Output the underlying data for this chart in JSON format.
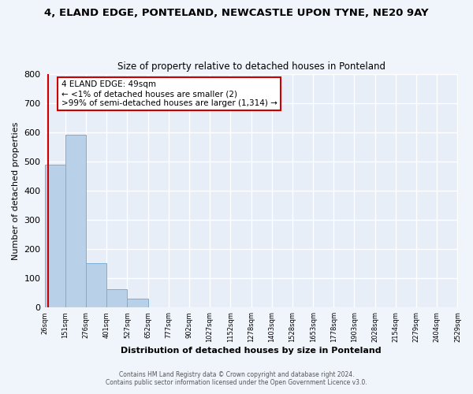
{
  "title1": "4, ELAND EDGE, PONTELAND, NEWCASTLE UPON TYNE, NE20 9AY",
  "title2": "Size of property relative to detached houses in Ponteland",
  "xlabel": "Distribution of detached houses by size in Ponteland",
  "ylabel": "Number of detached properties",
  "bar_color": "#b8d0e8",
  "bar_edge_color": "#7aaed6",
  "background_color": "#e8eef8",
  "fig_background_color": "#f0f4fb",
  "grid_color": "#ffffff",
  "bin_edges": [
    26,
    151,
    276,
    401,
    527,
    652,
    777,
    902,
    1027,
    1152,
    1278,
    1403,
    1528,
    1653,
    1778,
    1903,
    2028,
    2154,
    2279,
    2404,
    2529
  ],
  "bin_labels": [
    "26sqm",
    "151sqm",
    "276sqm",
    "401sqm",
    "527sqm",
    "652sqm",
    "777sqm",
    "902sqm",
    "1027sqm",
    "1152sqm",
    "1278sqm",
    "1403sqm",
    "1528sqm",
    "1653sqm",
    "1778sqm",
    "1903sqm",
    "2028sqm",
    "2154sqm",
    "2279sqm",
    "2404sqm",
    "2529sqm"
  ],
  "bar_heights": [
    490,
    592,
    152,
    62,
    30,
    2,
    0,
    0,
    0,
    0,
    0,
    0,
    0,
    0,
    0,
    0,
    0,
    0,
    0,
    0
  ],
  "ylim": [
    0,
    800
  ],
  "yticks": [
    0,
    100,
    200,
    300,
    400,
    500,
    600,
    700,
    800
  ],
  "property_line_x": 49,
  "property_line_color": "#cc0000",
  "annotation_box_edge": "#cc0000",
  "annotation_text_line1": "4 ELAND EDGE: 49sqm",
  "annotation_text_line2": "← <1% of detached houses are smaller (2)",
  "annotation_text_line3": ">99% of semi-detached houses are larger (1,314) →",
  "footer1": "Contains HM Land Registry data © Crown copyright and database right 2024.",
  "footer2": "Contains public sector information licensed under the Open Government Licence v3.0."
}
